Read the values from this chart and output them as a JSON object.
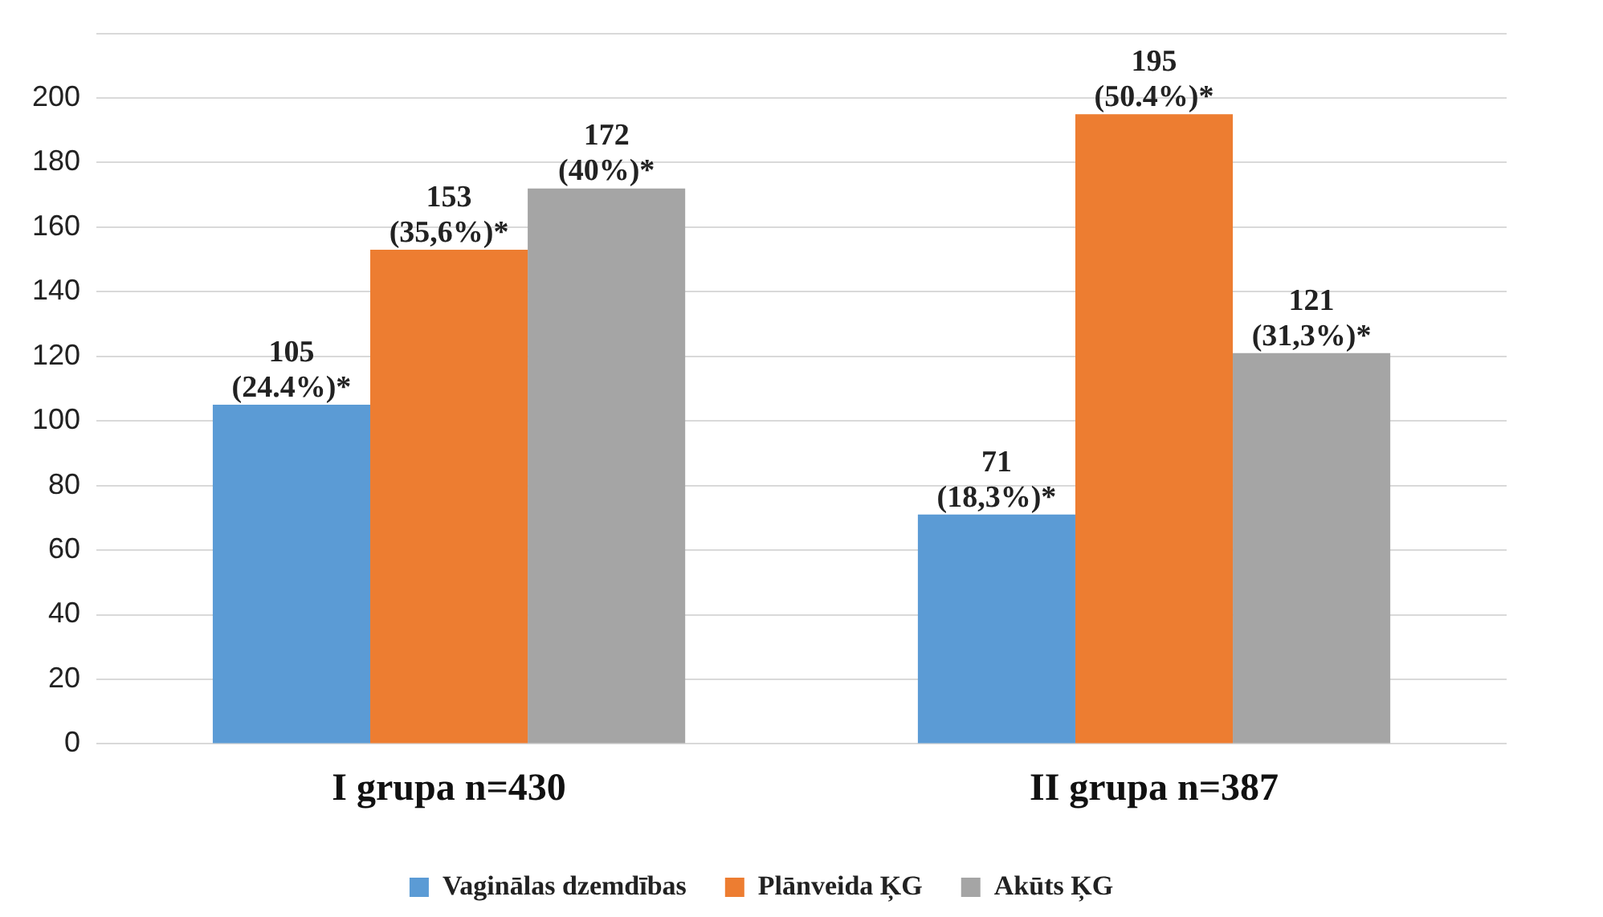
{
  "chart_data": {
    "type": "bar",
    "categories": [
      "I grupa n=430",
      "II grupa n=387"
    ],
    "series": [
      {
        "name": "Vaginālas dzemdības",
        "color": "#5b9bd5",
        "values": [
          105,
          71
        ],
        "value_labels": [
          "105\n(24.4%)*",
          "71\n(18,3%)*"
        ]
      },
      {
        "name": "Plānveida ĶG",
        "color": "#ed7d31",
        "values": [
          153,
          195
        ],
        "value_labels": [
          "153\n(35,6%)*",
          "195\n(50.4%)*"
        ]
      },
      {
        "name": "Akūts ĶG",
        "color": "#a5a5a5",
        "values": [
          172,
          121
        ],
        "value_labels": [
          "172\n(40%)*",
          "121\n(31,3%)*"
        ]
      }
    ],
    "ylim": [
      0,
      220
    ],
    "yticks": [
      0,
      20,
      40,
      60,
      80,
      100,
      120,
      140,
      160,
      180,
      200,
      {
        "value": 220,
        "label": null
      }
    ],
    "grid": "y",
    "legend": "bottom"
  }
}
